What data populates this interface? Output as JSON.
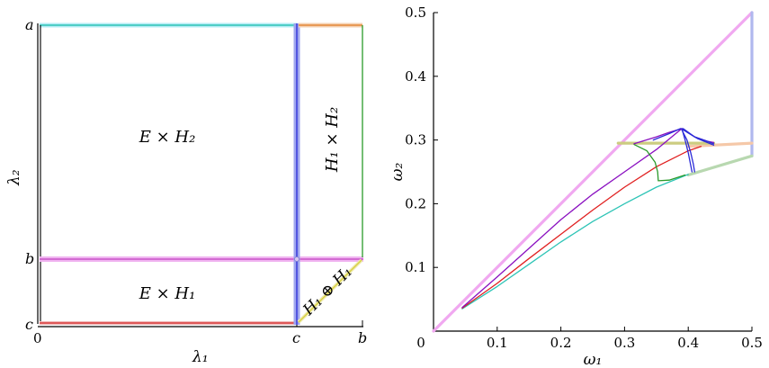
{
  "left_panel": {
    "y_ticks": [
      "a",
      "b",
      "c"
    ],
    "x_ticks": [
      "0",
      "c",
      "b"
    ],
    "x_axis_label": "λ₁",
    "y_axis_label": "λ₂",
    "regions": {
      "upper_left": "E × H₂",
      "upper_right": "H₁ × H₂",
      "lower_left": "E × H₁",
      "triangle": "H₁ ⊕ H₁"
    },
    "colors": {
      "top_line": "#2ec4b6",
      "top_line_halo": "#b3ecf5",
      "right_inner_vertical": "#2a2ad8",
      "right_inner_halo": "#9fa6ee",
      "magenta_line": "#c040c0",
      "magenta_halo": "#f0b3f0",
      "bottom_line": "#d42020",
      "right_box_top": "#e07a20",
      "right_box_side": "#2a9a2a",
      "diagonal": "#d8d040"
    }
  },
  "chart_data": {
    "type": "line",
    "x_tick_labels": [
      "0",
      "0.1",
      "0.2",
      "0.3",
      "0.4",
      "0.5"
    ],
    "y_tick_labels": [
      "0.1",
      "0.2",
      "0.3",
      "0.4",
      "0.5"
    ],
    "xlabel": "ω₁",
    "ylabel": "ω₂",
    "xlim": [
      0,
      0.5
    ],
    "ylim": [
      0,
      0.5
    ],
    "series": [
      {
        "color": "#f0a8f0",
        "points": [
          [
            0,
            0
          ],
          [
            0.5,
            0.5
          ]
        ]
      },
      {
        "color": "#b0b8ee",
        "points": [
          [
            0.5,
            0.5
          ],
          [
            0.5,
            0.275
          ]
        ]
      },
      {
        "color": "#b8d8b0",
        "points": [
          [
            0.4,
            0.245
          ],
          [
            0.5,
            0.275
          ]
        ]
      },
      {
        "color": "#f5c8a8",
        "points": [
          [
            0.4,
            0.29
          ],
          [
            0.5,
            0.295
          ]
        ]
      },
      {
        "color": "#cccc80",
        "points": [
          [
            0.29,
            0.295
          ],
          [
            0.44,
            0.295
          ]
        ]
      },
      {
        "color": "#2ec4b6",
        "points": [
          [
            0.045,
            0.035
          ],
          [
            0.1,
            0.07
          ],
          [
            0.15,
            0.105
          ],
          [
            0.2,
            0.14
          ],
          [
            0.25,
            0.172
          ],
          [
            0.3,
            0.2
          ],
          [
            0.35,
            0.226
          ],
          [
            0.4,
            0.246
          ]
        ]
      },
      {
        "color": "#e02020",
        "points": [
          [
            0.045,
            0.036
          ],
          [
            0.1,
            0.075
          ],
          [
            0.15,
            0.114
          ],
          [
            0.2,
            0.152
          ],
          [
            0.25,
            0.19
          ],
          [
            0.3,
            0.226
          ],
          [
            0.35,
            0.258
          ],
          [
            0.4,
            0.283
          ],
          [
            0.42,
            0.29
          ]
        ]
      },
      {
        "color": "#8a10c0",
        "points": [
          [
            0.045,
            0.037
          ],
          [
            0.1,
            0.085
          ],
          [
            0.15,
            0.13
          ],
          [
            0.2,
            0.175
          ],
          [
            0.25,
            0.215
          ],
          [
            0.3,
            0.25
          ],
          [
            0.35,
            0.285
          ],
          [
            0.39,
            0.318
          ]
        ]
      },
      {
        "color": "#2a9a2a",
        "points": [
          [
            0.315,
            0.293
          ],
          [
            0.335,
            0.283
          ],
          [
            0.348,
            0.265
          ],
          [
            0.352,
            0.25
          ],
          [
            0.353,
            0.236
          ],
          [
            0.37,
            0.237
          ],
          [
            0.395,
            0.245
          ]
        ]
      },
      {
        "color": "#8a10c0",
        "points": [
          [
            0.315,
            0.294
          ],
          [
            0.35,
            0.305
          ],
          [
            0.37,
            0.312
          ],
          [
            0.39,
            0.318
          ],
          [
            0.41,
            0.305
          ],
          [
            0.43,
            0.298
          ],
          [
            0.44,
            0.296
          ]
        ]
      },
      {
        "color": "#2a2ad8",
        "points": [
          [
            0.39,
            0.318
          ],
          [
            0.395,
            0.3
          ],
          [
            0.4,
            0.28
          ],
          [
            0.404,
            0.26
          ],
          [
            0.406,
            0.25
          ]
        ]
      },
      {
        "color": "#2a2ad8",
        "points": [
          [
            0.39,
            0.316
          ],
          [
            0.398,
            0.3
          ],
          [
            0.404,
            0.28
          ],
          [
            0.408,
            0.262
          ],
          [
            0.41,
            0.25
          ]
        ]
      },
      {
        "color": "#2a2ad8",
        "points": [
          [
            0.345,
            0.3
          ],
          [
            0.37,
            0.31
          ],
          [
            0.388,
            0.318
          ]
        ]
      },
      {
        "color": "#2a2ad8",
        "points": [
          [
            0.392,
            0.318
          ],
          [
            0.41,
            0.305
          ],
          [
            0.43,
            0.298
          ],
          [
            0.44,
            0.294
          ]
        ]
      },
      {
        "color": "#2a2ad8",
        "points": [
          [
            0.392,
            0.316
          ],
          [
            0.415,
            0.302
          ],
          [
            0.44,
            0.292
          ]
        ]
      }
    ]
  }
}
